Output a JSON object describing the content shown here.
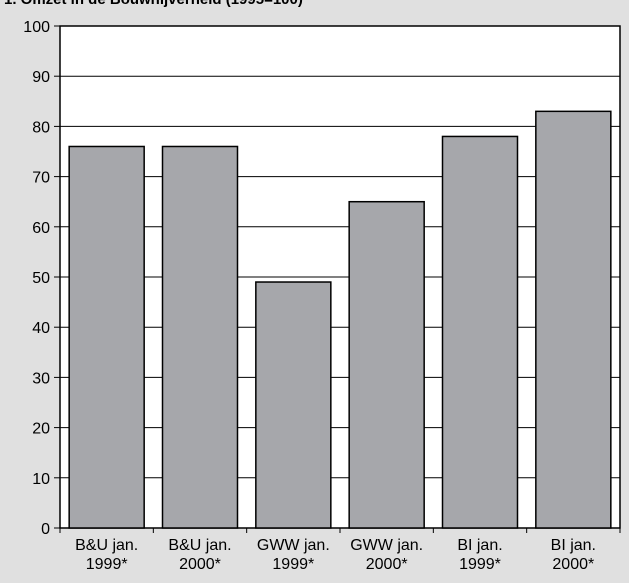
{
  "title": "1. Omzet in de Bouwnijverheid (1995=100)",
  "chart_data": {
    "type": "bar",
    "categories": [
      [
        "B&U jan.",
        "1999*"
      ],
      [
        "B&U jan.",
        "2000*"
      ],
      [
        "GWW jan.",
        "1999*"
      ],
      [
        "GWW jan.",
        "2000*"
      ],
      [
        "BI jan.",
        "1999*"
      ],
      [
        "BI jan.",
        "2000*"
      ]
    ],
    "values": [
      76,
      76,
      49,
      65,
      78,
      83
    ],
    "ylim": [
      0,
      100
    ],
    "yticks": [
      "0",
      "10",
      "20",
      "30",
      "40",
      "50",
      "60",
      "70",
      "80",
      "90",
      "100"
    ],
    "grid": true,
    "bar_color": "#a6a7ab",
    "background_color": "#e0e0e0",
    "plot_background_color": "#ffffff"
  }
}
